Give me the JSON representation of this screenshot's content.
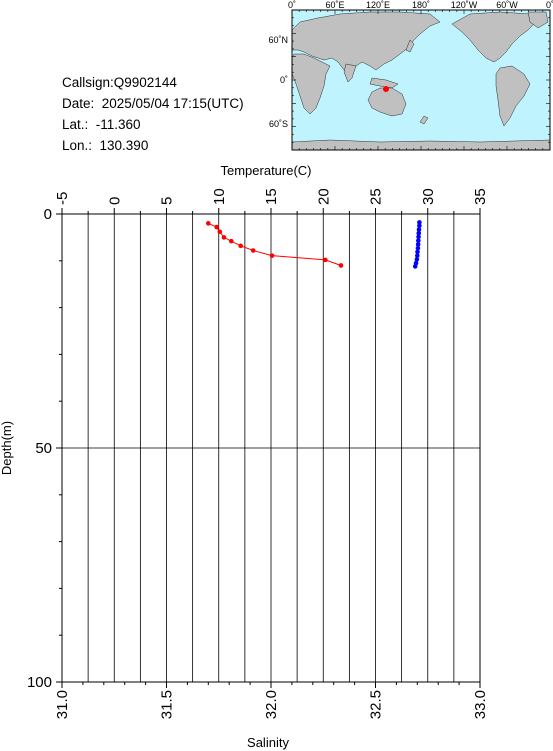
{
  "info": {
    "callsign": "Callsign:Q9902144",
    "date": "Date:  2025/05/04 17:15(UTC)",
    "lat": "Lat.:  -11.360",
    "lon": "Lon.:  130.390"
  },
  "map": {
    "top_labels": [
      "0˚",
      "60˚E",
      "120˚E",
      "180˚",
      "120˚W",
      "60˚W",
      "0˚"
    ],
    "left_labels": [
      "60˚N",
      "0˚",
      "60˚S"
    ],
    "marker": {
      "lat": -11.36,
      "lon": 130.39,
      "color": "#ff0000"
    },
    "colors": {
      "ocean": "#bff4ff",
      "land": "#c0c0c0"
    }
  },
  "chart_data": {
    "type": "scatter",
    "top_axis": {
      "label": "Temperature(C)",
      "range": [
        -5,
        35
      ],
      "ticks": [
        "-5",
        "0",
        "5",
        "10",
        "15",
        "20",
        "25",
        "30",
        "35"
      ]
    },
    "bottom_axis": {
      "label": "Salinity",
      "range": [
        31.0,
        33.0
      ],
      "ticks": [
        "31.0",
        "31.5",
        "32.0",
        "32.5",
        "33.0"
      ]
    },
    "y_axis": {
      "label": "Depth(m)",
      "range": [
        0,
        100
      ],
      "inverted": true,
      "ticks": [
        "0",
        "50",
        "100"
      ]
    },
    "grid": true,
    "series": [
      {
        "axis": "temperature",
        "color": "#ff0000",
        "points": [
          {
            "x": 9.0,
            "y": 2.0
          },
          {
            "x": 9.8,
            "y": 2.8
          },
          {
            "x": 10.1,
            "y": 3.8
          },
          {
            "x": 10.5,
            "y": 5.0
          },
          {
            "x": 11.2,
            "y": 5.8
          },
          {
            "x": 12.1,
            "y": 6.8
          },
          {
            "x": 13.3,
            "y": 7.8
          },
          {
            "x": 15.1,
            "y": 8.9
          },
          {
            "x": 20.2,
            "y": 9.8
          },
          {
            "x": 21.7,
            "y": 11.0
          }
        ]
      },
      {
        "axis": "salinity",
        "color": "#0000ff",
        "points": [
          {
            "x": 32.71,
            "y": 1.8
          },
          {
            "x": 32.71,
            "y": 2.5
          },
          {
            "x": 32.708,
            "y": 3.3
          },
          {
            "x": 32.707,
            "y": 4.1
          },
          {
            "x": 32.706,
            "y": 4.9
          },
          {
            "x": 32.705,
            "y": 5.7
          },
          {
            "x": 32.704,
            "y": 6.5
          },
          {
            "x": 32.703,
            "y": 7.3
          },
          {
            "x": 32.701,
            "y": 8.1
          },
          {
            "x": 32.7,
            "y": 8.9
          },
          {
            "x": 32.698,
            "y": 9.7
          },
          {
            "x": 32.694,
            "y": 10.5
          },
          {
            "x": 32.69,
            "y": 11.2
          }
        ]
      }
    ]
  }
}
